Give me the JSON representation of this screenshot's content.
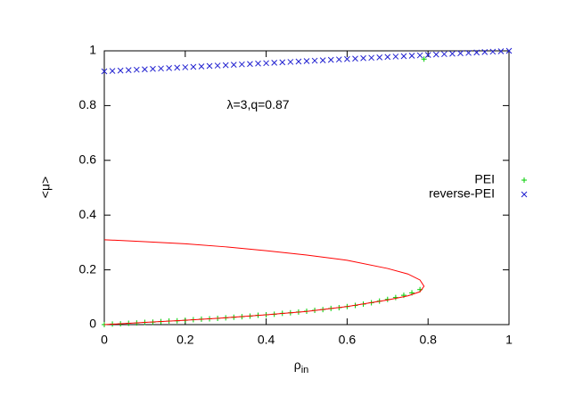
{
  "chart_data": {
    "type": "scatter",
    "xlabel": {
      "text": "ρ",
      "subscript": "in"
    },
    "ylabel": "<μ>",
    "annotation": {
      "text": "λ=3,q=0.87",
      "x": 0.38,
      "y": 0.8
    },
    "xlim": [
      0,
      1
    ],
    "ylim": [
      0,
      1
    ],
    "xticks": [
      0,
      0.2,
      0.4,
      0.6,
      0.8,
      1
    ],
    "yticks": [
      0,
      0.2,
      0.4,
      0.6,
      0.8,
      1
    ],
    "legend": "right",
    "series": [
      {
        "name": "PEI",
        "color": "#00cc00",
        "marker": "+",
        "x": [
          0,
          0.02,
          0.04,
          0.06,
          0.08,
          0.1,
          0.12,
          0.14,
          0.16,
          0.18,
          0.2,
          0.22,
          0.24,
          0.26,
          0.28,
          0.3,
          0.32,
          0.34,
          0.36,
          0.38,
          0.4,
          0.42,
          0.44,
          0.46,
          0.48,
          0.5,
          0.52,
          0.54,
          0.56,
          0.58,
          0.6,
          0.62,
          0.64,
          0.66,
          0.68,
          0.7,
          0.72,
          0.74,
          0.76,
          0.78,
          0.79
        ],
        "values": [
          0,
          0.002,
          0.003,
          0.005,
          0.006,
          0.008,
          0.009,
          0.011,
          0.013,
          0.014,
          0.016,
          0.018,
          0.02,
          0.021,
          0.023,
          0.025,
          0.027,
          0.029,
          0.031,
          0.034,
          0.036,
          0.038,
          0.041,
          0.043,
          0.046,
          0.049,
          0.052,
          0.055,
          0.059,
          0.062,
          0.066,
          0.07,
          0.075,
          0.08,
          0.086,
          0.092,
          0.099,
          0.107,
          0.116,
          0.128,
          0.97
        ]
      },
      {
        "name": "reverse-PEI",
        "color": "#2020d0",
        "marker": "x",
        "x": [
          0,
          0.02,
          0.04,
          0.06,
          0.08,
          0.1,
          0.12,
          0.14,
          0.16,
          0.18,
          0.2,
          0.22,
          0.24,
          0.26,
          0.28,
          0.3,
          0.32,
          0.34,
          0.36,
          0.38,
          0.4,
          0.42,
          0.44,
          0.46,
          0.48,
          0.5,
          0.52,
          0.54,
          0.56,
          0.58,
          0.6,
          0.62,
          0.64,
          0.66,
          0.68,
          0.7,
          0.72,
          0.74,
          0.76,
          0.78,
          0.8,
          0.82,
          0.84,
          0.86,
          0.88,
          0.9,
          0.92,
          0.94,
          0.96,
          0.98,
          1
        ],
        "values": [
          0.925,
          0.9265,
          0.928,
          0.9295,
          0.931,
          0.9325,
          0.934,
          0.9355,
          0.937,
          0.9385,
          0.94,
          0.9415,
          0.943,
          0.9445,
          0.946,
          0.9475,
          0.949,
          0.9505,
          0.952,
          0.9535,
          0.955,
          0.9565,
          0.958,
          0.9595,
          0.961,
          0.9625,
          0.964,
          0.9655,
          0.967,
          0.9685,
          0.97,
          0.9715,
          0.973,
          0.9745,
          0.976,
          0.9775,
          0.979,
          0.9805,
          0.982,
          0.9835,
          0.985,
          0.9865,
          0.988,
          0.9895,
          0.991,
          0.9925,
          0.994,
          0.9955,
          0.997,
          0.9985,
          1
        ]
      },
      {
        "color": "#ff0000",
        "marker": "line",
        "x": [
          0,
          0.1,
          0.2,
          0.3,
          0.4,
          0.5,
          0.6,
          0.7,
          0.75,
          0.78,
          0.79,
          0.78,
          0.75,
          0.7,
          0.6,
          0.5,
          0.4,
          0.3,
          0.2,
          0.1,
          0
        ],
        "values": [
          0.31,
          0.303,
          0.295,
          0.284,
          0.27,
          0.254,
          0.235,
          0.205,
          0.185,
          0.163,
          0.14,
          0.12,
          0.105,
          0.09,
          0.066,
          0.048,
          0.036,
          0.025,
          0.016,
          0.008,
          0
        ]
      }
    ]
  }
}
